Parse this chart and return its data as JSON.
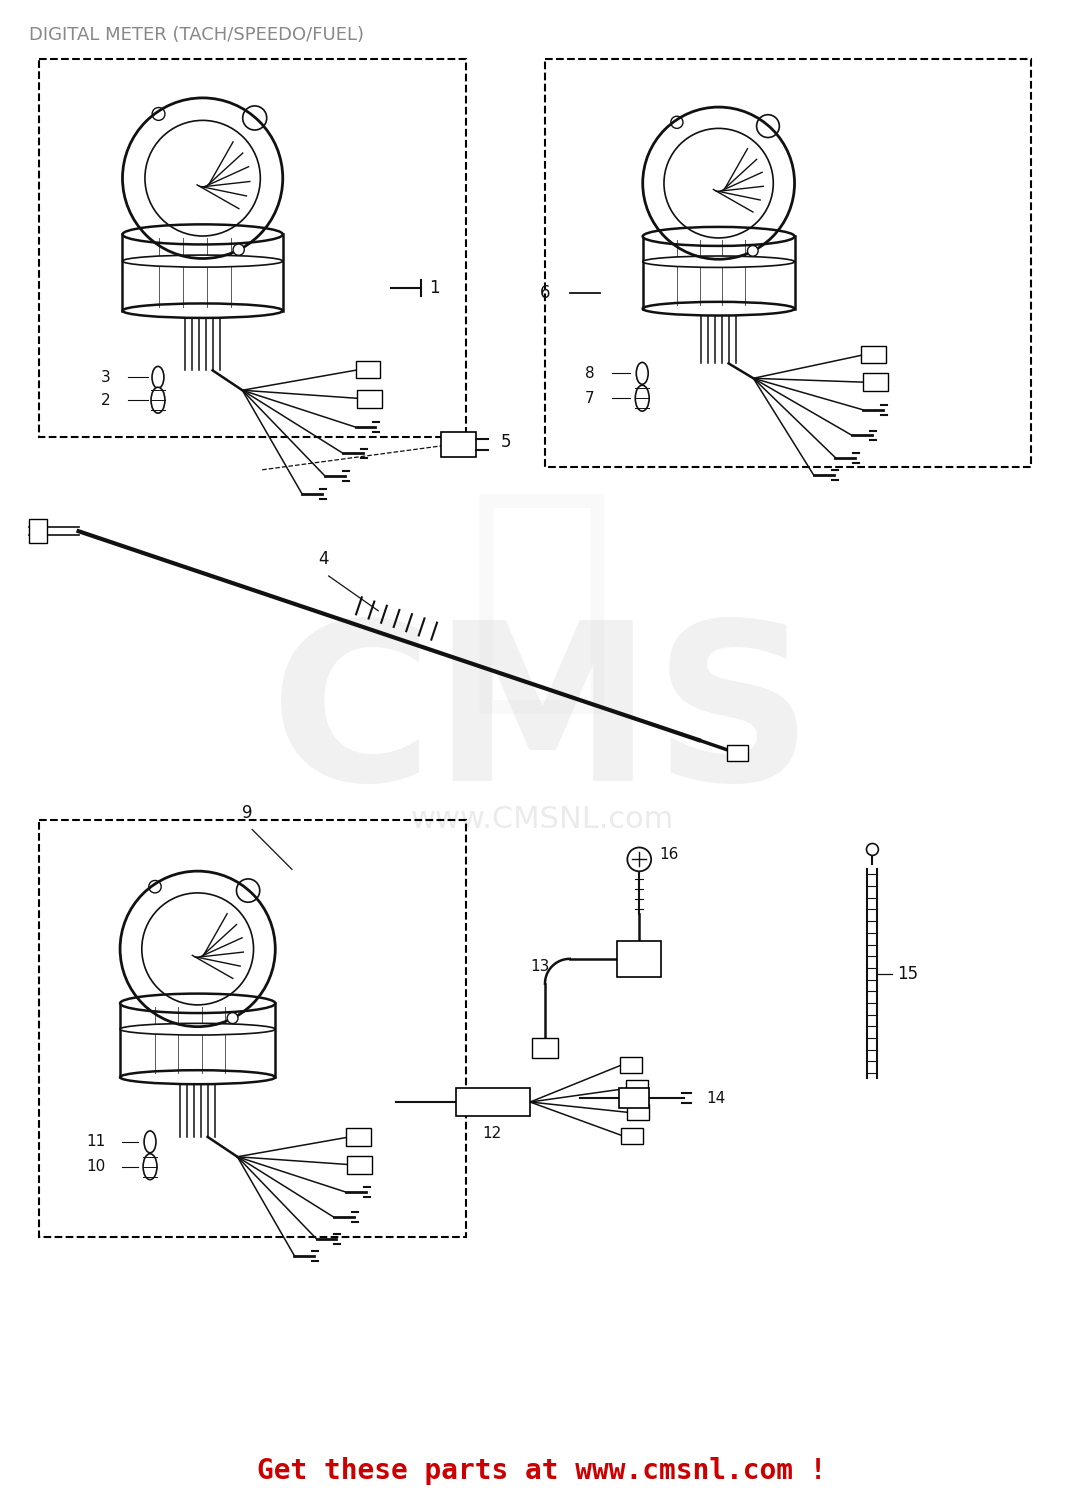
{
  "title": "DIGITAL METER (TACH/SPEEDO/FUEL)",
  "title_color": "#888888",
  "title_fontsize": 13,
  "background_color": "#ffffff",
  "footer_text": "Get these parts at www.cmsnl.com !",
  "footer_color": "#cc0000",
  "footer_fontsize": 20,
  "watermark_text": "www.CMSNL.com",
  "watermark_color": "#d8d8d8",
  "cms_watermark_color": "#d8d8d8",
  "line_color": "#111111",
  "label_color": "#111111",
  "label_fontsize": 11
}
